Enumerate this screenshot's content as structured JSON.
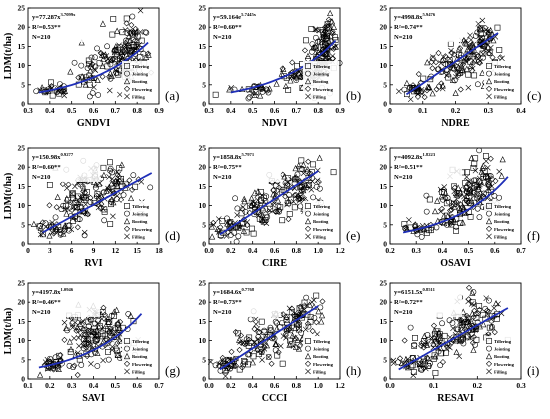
{
  "figure": {
    "ylabel": "LDM(t/ha)",
    "legend": [
      "Tillering",
      "Jointing",
      "Booting",
      "Flowering",
      "Filling"
    ]
  },
  "chart_data": [
    {
      "type": "scatter",
      "xlabel": "GNDVI",
      "panel_label": "(a)",
      "equation": {
        "base": "y=77.287x",
        "exp": "3.7099x"
      },
      "r2": "R²=0.53**",
      "n": "N=210",
      "xlim": [
        0.3,
        0.9
      ],
      "xticks": [
        "0.3",
        "0.4",
        "0.5",
        "0.6",
        "0.7",
        "0.8",
        "0.9"
      ],
      "ylim": [
        0,
        25
      ],
      "yticks": [
        "0",
        "5",
        "10",
        "15",
        "20",
        "25"
      ],
      "fit": {
        "x0": 0.35,
        "y0": 3.0,
        "x1": 0.85,
        "y1": 16.0,
        "curve": "exp"
      },
      "cloud": [
        {
          "x": 0.42,
          "y": 3.8,
          "sx": 0.04,
          "sy": 0.9,
          "n": 30
        },
        {
          "x": 0.6,
          "y": 8.0,
          "sx": 0.06,
          "sy": 2.5,
          "n": 50
        },
        {
          "x": 0.72,
          "y": 12.0,
          "sx": 0.05,
          "sy": 3.5,
          "n": 70
        },
        {
          "x": 0.78,
          "y": 16.0,
          "sx": 0.035,
          "sy": 3.0,
          "n": 60
        }
      ]
    },
    {
      "type": "scatter",
      "xlabel": "NDVI",
      "panel_label": "(b)",
      "equation": {
        "base": "y=59.164e",
        "exp": "5.7445x"
      },
      "r2": "R²=0.60**",
      "n": "N=210",
      "xlim": [
        0.3,
        0.9
      ],
      "xticks": [
        "0.3",
        "0.4",
        "0.5",
        "0.6",
        "0.7",
        "0.8",
        "0.9"
      ],
      "ylim": [
        0,
        25
      ],
      "yticks": [
        "0",
        "5",
        "10",
        "15",
        "20",
        "25"
      ],
      "fit": {
        "x0": 0.4,
        "y0": 3.0,
        "x1": 0.88,
        "y1": 16.5,
        "curve": "exp"
      },
      "cloud": [
        {
          "x": 0.5,
          "y": 3.8,
          "sx": 0.05,
          "sy": 0.9,
          "n": 30
        },
        {
          "x": 0.7,
          "y": 7.0,
          "sx": 0.05,
          "sy": 2.0,
          "n": 45
        },
        {
          "x": 0.8,
          "y": 12.0,
          "sx": 0.03,
          "sy": 3.5,
          "n": 70
        },
        {
          "x": 0.84,
          "y": 16.5,
          "sx": 0.025,
          "sy": 3.0,
          "n": 65
        }
      ]
    },
    {
      "type": "scatter",
      "xlabel": "NDRE",
      "panel_label": "(c)",
      "equation": {
        "base": "y=4998.8x",
        "exp": "5.9476"
      },
      "r2": "R²=0.74**",
      "n": "N=210",
      "xlim": [
        0,
        0.4
      ],
      "xticks": [
        "0",
        "0.1",
        "0.2",
        "0.3",
        "0.4"
      ],
      "ylim": [
        0,
        25
      ],
      "yticks": [
        "0",
        "5",
        "10",
        "15",
        "20",
        "25"
      ],
      "fit": {
        "x0": 0.05,
        "y0": 2.5,
        "x1": 0.33,
        "y1": 18.5,
        "curve": "linear"
      },
      "cloud": [
        {
          "x": 0.08,
          "y": 4.0,
          "sx": 0.03,
          "sy": 1.2,
          "n": 40
        },
        {
          "x": 0.17,
          "y": 9.0,
          "sx": 0.04,
          "sy": 2.5,
          "n": 55
        },
        {
          "x": 0.24,
          "y": 13.0,
          "sx": 0.035,
          "sy": 3.0,
          "n": 60
        },
        {
          "x": 0.29,
          "y": 16.0,
          "sx": 0.025,
          "sy": 2.8,
          "n": 55
        }
      ]
    },
    {
      "type": "scatter",
      "xlabel": "RVI",
      "panel_label": "(d)",
      "equation": {
        "base": "y=150.98x",
        "exp": "0.9277"
      },
      "r2": "R²=0.60**",
      "n": "N=210",
      "xlim": [
        0,
        18
      ],
      "xticks": [
        "0",
        "3",
        "6",
        "9",
        "12",
        "15",
        "18"
      ],
      "ylim": [
        0,
        25
      ],
      "yticks": [
        "0",
        "5",
        "10",
        "15",
        "20",
        "25"
      ],
      "fit": {
        "x0": 2.0,
        "y0": 3.0,
        "x1": 17.0,
        "y1": 18.5,
        "curve": "linear"
      },
      "cloud": [
        {
          "x": 3.5,
          "y": 4.0,
          "sx": 1.2,
          "sy": 1.0,
          "n": 35
        },
        {
          "x": 6.5,
          "y": 9.0,
          "sx": 1.5,
          "sy": 3.0,
          "n": 55
        },
        {
          "x": 9.0,
          "y": 14.0,
          "sx": 2.0,
          "sy": 3.5,
          "n": 70
        },
        {
          "x": 12.5,
          "y": 15.0,
          "sx": 1.8,
          "sy": 3.5,
          "n": 50
        }
      ]
    },
    {
      "type": "scatter",
      "xlabel": "CIRE",
      "panel_label": "(e)",
      "equation": {
        "base": "y=1858.8x",
        "exp": "5.7971"
      },
      "r2": "R²=0.75**",
      "n": "N=210",
      "xlim": [
        0,
        1.2
      ],
      "xticks": [
        "0.0",
        "0.2",
        "0.4",
        "0.6",
        "0.8",
        "1.0",
        "1.2"
      ],
      "ylim": [
        0,
        25
      ],
      "yticks": [
        "0",
        "5",
        "10",
        "15",
        "20",
        "25"
      ],
      "fit": {
        "x0": 0.1,
        "y0": 2.5,
        "x1": 1.0,
        "y1": 19.0,
        "curve": "linear"
      },
      "cloud": [
        {
          "x": 0.2,
          "y": 4.0,
          "sx": 0.08,
          "sy": 1.2,
          "n": 40
        },
        {
          "x": 0.45,
          "y": 9.0,
          "sx": 0.12,
          "sy": 2.5,
          "n": 60
        },
        {
          "x": 0.7,
          "y": 13.0,
          "sx": 0.12,
          "sy": 3.0,
          "n": 60
        },
        {
          "x": 0.85,
          "y": 16.0,
          "sx": 0.1,
          "sy": 2.8,
          "n": 50
        }
      ]
    },
    {
      "type": "scatter",
      "xlabel": "OSAVI",
      "panel_label": "(f)",
      "equation": {
        "base": "y=4092.8x",
        "exp": "1.8223"
      },
      "r2": "R²=0.51**",
      "n": "N=210",
      "xlim": [
        0.2,
        0.7
      ],
      "xticks": [
        "0.2",
        "0.3",
        "0.4",
        "0.5",
        "0.6",
        "0.7"
      ],
      "ylim": [
        0,
        25
      ],
      "yticks": [
        "0",
        "5",
        "10",
        "15",
        "20",
        "25"
      ],
      "fit": {
        "x0": 0.25,
        "y0": 3.0,
        "x1": 0.65,
        "y1": 17.5,
        "curve": "exp"
      },
      "cloud": [
        {
          "x": 0.3,
          "y": 4.0,
          "sx": 0.03,
          "sy": 1.0,
          "n": 30
        },
        {
          "x": 0.43,
          "y": 9.0,
          "sx": 0.04,
          "sy": 3.0,
          "n": 60
        },
        {
          "x": 0.5,
          "y": 13.5,
          "sx": 0.04,
          "sy": 3.5,
          "n": 70
        },
        {
          "x": 0.56,
          "y": 16.0,
          "sx": 0.035,
          "sy": 3.0,
          "n": 50
        }
      ]
    },
    {
      "type": "scatter",
      "xlabel": "SAVI",
      "panel_label": "(g)",
      "equation": {
        "base": "y=4197.8x",
        "exp": "1.0946"
      },
      "r2": "R²=0.46**",
      "n": "N=210",
      "xlim": [
        0.1,
        0.7
      ],
      "xticks": [
        "0.1",
        "0.2",
        "0.3",
        "0.4",
        "0.5",
        "0.6",
        "0.7"
      ],
      "ylim": [
        0,
        25
      ],
      "yticks": [
        "0",
        "5",
        "10",
        "15",
        "20",
        "25"
      ],
      "fit": {
        "x0": 0.15,
        "y0": 3.0,
        "x1": 0.62,
        "y1": 17.0,
        "curve": "exp"
      },
      "cloud": [
        {
          "x": 0.22,
          "y": 4.0,
          "sx": 0.04,
          "sy": 1.2,
          "n": 35
        },
        {
          "x": 0.35,
          "y": 9.0,
          "sx": 0.05,
          "sy": 3.0,
          "n": 55
        },
        {
          "x": 0.42,
          "y": 14.0,
          "sx": 0.06,
          "sy": 3.5,
          "n": 70
        },
        {
          "x": 0.5,
          "y": 12.0,
          "sx": 0.05,
          "sy": 3.5,
          "n": 50
        }
      ]
    },
    {
      "type": "scatter",
      "xlabel": "CCCI",
      "panel_label": "(h)",
      "equation": {
        "base": "y=1684.6x",
        "exp": "0.7768"
      },
      "r2": "R²=0.73**",
      "n": "N=210",
      "xlim": [
        0,
        1.2
      ],
      "xticks": [
        "0.0",
        "0.2",
        "0.4",
        "0.6",
        "0.8",
        "1.0",
        "1.2"
      ],
      "ylim": [
        0,
        25
      ],
      "yticks": [
        "0",
        "5",
        "10",
        "15",
        "20",
        "25"
      ],
      "fit": {
        "x0": 0.1,
        "y0": 2.5,
        "x1": 1.0,
        "y1": 19.0,
        "curve": "linear"
      },
      "cloud": [
        {
          "x": 0.2,
          "y": 4.0,
          "sx": 0.08,
          "sy": 1.2,
          "n": 40
        },
        {
          "x": 0.45,
          "y": 9.0,
          "sx": 0.12,
          "sy": 2.5,
          "n": 60
        },
        {
          "x": 0.7,
          "y": 13.0,
          "sx": 0.12,
          "sy": 3.0,
          "n": 60
        },
        {
          "x": 0.85,
          "y": 16.0,
          "sx": 0.1,
          "sy": 2.8,
          "n": 50
        }
      ]
    },
    {
      "type": "scatter",
      "xlabel": "RESAVI",
      "panel_label": "(i)",
      "equation": {
        "base": "y=6151.5x",
        "exp": "0.8511"
      },
      "r2": "R²=0.72**",
      "n": "N=210",
      "xlim": [
        0,
        0.3
      ],
      "xticks": [
        "0.0",
        "0.1",
        "0.2",
        "0.3"
      ],
      "ylim": [
        0,
        25
      ],
      "yticks": [
        "0",
        "5",
        "10",
        "15",
        "20",
        "25"
      ],
      "fit": {
        "x0": 0.02,
        "y0": 2.5,
        "x1": 0.27,
        "y1": 18.5,
        "curve": "linear"
      },
      "cloud": [
        {
          "x": 0.05,
          "y": 4.0,
          "sx": 0.02,
          "sy": 1.2,
          "n": 40
        },
        {
          "x": 0.11,
          "y": 9.0,
          "sx": 0.03,
          "sy": 2.5,
          "n": 55
        },
        {
          "x": 0.17,
          "y": 13.0,
          "sx": 0.03,
          "sy": 3.0,
          "n": 60
        },
        {
          "x": 0.21,
          "y": 16.0,
          "sx": 0.025,
          "sy": 2.8,
          "n": 55
        }
      ]
    }
  ]
}
